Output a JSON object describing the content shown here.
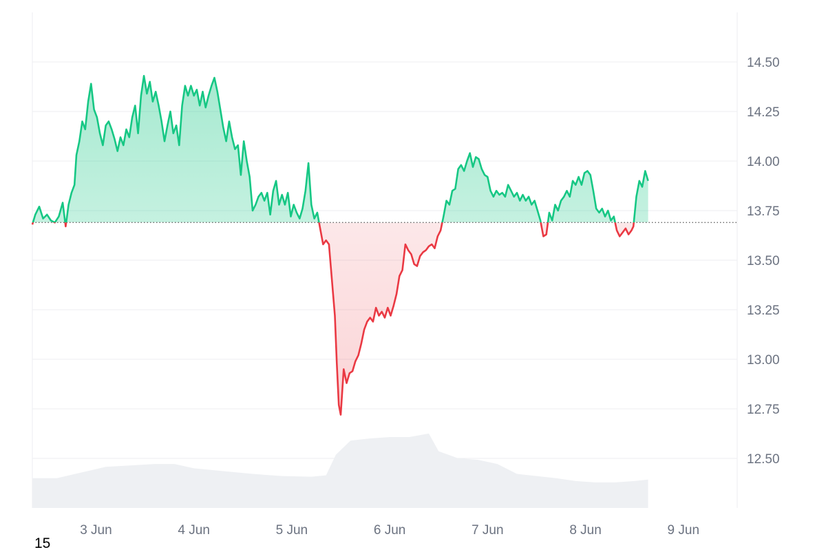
{
  "chart_data": {
    "type": "area",
    "baseline": 13.69,
    "ylim": [
      12.25,
      14.75
    ],
    "y_ticks": [
      12.5,
      12.75,
      13.0,
      13.25,
      13.5,
      13.75,
      14.0,
      14.25,
      14.5
    ],
    "y_tick_labels": [
      "12.50",
      "12.75",
      "13.00",
      "13.25",
      "13.50",
      "13.75",
      "14.00",
      "14.25",
      "14.50"
    ],
    "x_range_days": [
      2.35,
      9.55
    ],
    "x_ticks": [
      {
        "day": 3,
        "label": "3 Jun"
      },
      {
        "day": 4,
        "label": "4 Jun"
      },
      {
        "day": 5,
        "label": "5 Jun"
      },
      {
        "day": 6,
        "label": "6 Jun"
      },
      {
        "day": 7,
        "label": "7 Jun"
      },
      {
        "day": 8,
        "label": "8 Jun"
      },
      {
        "day": 9,
        "label": "9 Jun"
      }
    ],
    "series": [
      {
        "color_up": "#16c784",
        "color_down": "#ea3943",
        "points": [
          [
            2.35,
            13.68
          ],
          [
            2.38,
            13.73
          ],
          [
            2.42,
            13.77
          ],
          [
            2.46,
            13.71
          ],
          [
            2.5,
            13.73
          ],
          [
            2.54,
            13.7
          ],
          [
            2.58,
            13.69
          ],
          [
            2.62,
            13.72
          ],
          [
            2.66,
            13.79
          ],
          [
            2.69,
            13.67
          ],
          [
            2.72,
            13.78
          ],
          [
            2.75,
            13.84
          ],
          [
            2.78,
            13.88
          ],
          [
            2.8,
            14.03
          ],
          [
            2.83,
            14.1
          ],
          [
            2.86,
            14.2
          ],
          [
            2.89,
            14.16
          ],
          [
            2.92,
            14.3
          ],
          [
            2.95,
            14.39
          ],
          [
            2.98,
            14.26
          ],
          [
            3.01,
            14.22
          ],
          [
            3.04,
            14.14
          ],
          [
            3.07,
            14.08
          ],
          [
            3.1,
            14.18
          ],
          [
            3.13,
            14.2
          ],
          [
            3.16,
            14.16
          ],
          [
            3.19,
            14.11
          ],
          [
            3.22,
            14.05
          ],
          [
            3.25,
            14.12
          ],
          [
            3.28,
            14.08
          ],
          [
            3.31,
            14.16
          ],
          [
            3.34,
            14.12
          ],
          [
            3.37,
            14.22
          ],
          [
            3.4,
            14.28
          ],
          [
            3.43,
            14.14
          ],
          [
            3.46,
            14.33
          ],
          [
            3.49,
            14.43
          ],
          [
            3.52,
            14.34
          ],
          [
            3.55,
            14.4
          ],
          [
            3.58,
            14.3
          ],
          [
            3.61,
            14.35
          ],
          [
            3.64,
            14.28
          ],
          [
            3.67,
            14.2
          ],
          [
            3.7,
            14.1
          ],
          [
            3.73,
            14.18
          ],
          [
            3.76,
            14.25
          ],
          [
            3.79,
            14.14
          ],
          [
            3.82,
            14.18
          ],
          [
            3.85,
            14.08
          ],
          [
            3.88,
            14.28
          ],
          [
            3.91,
            14.38
          ],
          [
            3.94,
            14.33
          ],
          [
            3.97,
            14.38
          ],
          [
            4.0,
            14.33
          ],
          [
            4.03,
            14.36
          ],
          [
            4.06,
            14.28
          ],
          [
            4.09,
            14.35
          ],
          [
            4.12,
            14.27
          ],
          [
            4.15,
            14.33
          ],
          [
            4.18,
            14.38
          ],
          [
            4.21,
            14.42
          ],
          [
            4.24,
            14.35
          ],
          [
            4.27,
            14.26
          ],
          [
            4.3,
            14.17
          ],
          [
            4.33,
            14.1
          ],
          [
            4.36,
            14.2
          ],
          [
            4.39,
            14.12
          ],
          [
            4.42,
            14.06
          ],
          [
            4.45,
            14.08
          ],
          [
            4.48,
            13.93
          ],
          [
            4.51,
            14.1
          ],
          [
            4.54,
            14.0
          ],
          [
            4.57,
            13.92
          ],
          [
            4.6,
            13.75
          ],
          [
            4.63,
            13.78
          ],
          [
            4.66,
            13.82
          ],
          [
            4.69,
            13.84
          ],
          [
            4.72,
            13.8
          ],
          [
            4.75,
            13.84
          ],
          [
            4.78,
            13.73
          ],
          [
            4.81,
            13.85
          ],
          [
            4.84,
            13.9
          ],
          [
            4.87,
            13.78
          ],
          [
            4.9,
            13.83
          ],
          [
            4.93,
            13.78
          ],
          [
            4.96,
            13.84
          ],
          [
            4.99,
            13.72
          ],
          [
            5.02,
            13.78
          ],
          [
            5.05,
            13.74
          ],
          [
            5.08,
            13.71
          ],
          [
            5.11,
            13.76
          ],
          [
            5.14,
            13.85
          ],
          [
            5.17,
            13.99
          ],
          [
            5.2,
            13.78
          ],
          [
            5.23,
            13.71
          ],
          [
            5.26,
            13.74
          ],
          [
            5.29,
            13.66
          ],
          [
            5.32,
            13.58
          ],
          [
            5.35,
            13.6
          ],
          [
            5.38,
            13.58
          ],
          [
            5.41,
            13.4
          ],
          [
            5.44,
            13.22
          ],
          [
            5.46,
            12.98
          ],
          [
            5.48,
            12.77
          ],
          [
            5.5,
            12.72
          ],
          [
            5.53,
            12.95
          ],
          [
            5.56,
            12.88
          ],
          [
            5.59,
            12.93
          ],
          [
            5.62,
            12.94
          ],
          [
            5.65,
            12.99
          ],
          [
            5.68,
            13.02
          ],
          [
            5.71,
            13.08
          ],
          [
            5.74,
            13.15
          ],
          [
            5.77,
            13.19
          ],
          [
            5.8,
            13.21
          ],
          [
            5.83,
            13.19
          ],
          [
            5.86,
            13.26
          ],
          [
            5.89,
            13.22
          ],
          [
            5.92,
            13.24
          ],
          [
            5.95,
            13.21
          ],
          [
            5.98,
            13.26
          ],
          [
            6.01,
            13.22
          ],
          [
            6.04,
            13.27
          ],
          [
            6.07,
            13.33
          ],
          [
            6.1,
            13.42
          ],
          [
            6.13,
            13.45
          ],
          [
            6.16,
            13.58
          ],
          [
            6.19,
            13.55
          ],
          [
            6.22,
            13.53
          ],
          [
            6.25,
            13.48
          ],
          [
            6.28,
            13.47
          ],
          [
            6.31,
            13.52
          ],
          [
            6.34,
            13.54
          ],
          [
            6.37,
            13.55
          ],
          [
            6.4,
            13.57
          ],
          [
            6.43,
            13.58
          ],
          [
            6.46,
            13.56
          ],
          [
            6.49,
            13.62
          ],
          [
            6.52,
            13.65
          ],
          [
            6.55,
            13.72
          ],
          [
            6.58,
            13.8
          ],
          [
            6.61,
            13.78
          ],
          [
            6.64,
            13.85
          ],
          [
            6.67,
            13.86
          ],
          [
            6.7,
            13.96
          ],
          [
            6.73,
            13.98
          ],
          [
            6.76,
            13.95
          ],
          [
            6.79,
            14.0
          ],
          [
            6.82,
            14.04
          ],
          [
            6.85,
            13.97
          ],
          [
            6.88,
            14.02
          ],
          [
            6.91,
            14.01
          ],
          [
            6.94,
            13.96
          ],
          [
            6.97,
            13.93
          ],
          [
            7.0,
            13.92
          ],
          [
            7.03,
            13.85
          ],
          [
            7.06,
            13.82
          ],
          [
            7.09,
            13.85
          ],
          [
            7.12,
            13.83
          ],
          [
            7.15,
            13.84
          ],
          [
            7.18,
            13.82
          ],
          [
            7.21,
            13.88
          ],
          [
            7.24,
            13.85
          ],
          [
            7.27,
            13.82
          ],
          [
            7.3,
            13.84
          ],
          [
            7.33,
            13.8
          ],
          [
            7.36,
            13.83
          ],
          [
            7.39,
            13.8
          ],
          [
            7.42,
            13.82
          ],
          [
            7.45,
            13.78
          ],
          [
            7.48,
            13.8
          ],
          [
            7.51,
            13.75
          ],
          [
            7.54,
            13.7
          ],
          [
            7.57,
            13.62
          ],
          [
            7.6,
            13.63
          ],
          [
            7.63,
            13.74
          ],
          [
            7.66,
            13.7
          ],
          [
            7.69,
            13.78
          ],
          [
            7.72,
            13.75
          ],
          [
            7.75,
            13.8
          ],
          [
            7.78,
            13.82
          ],
          [
            7.81,
            13.85
          ],
          [
            7.84,
            13.82
          ],
          [
            7.87,
            13.9
          ],
          [
            7.9,
            13.88
          ],
          [
            7.93,
            13.92
          ],
          [
            7.96,
            13.88
          ],
          [
            7.99,
            13.94
          ],
          [
            8.02,
            13.95
          ],
          [
            8.05,
            13.93
          ],
          [
            8.08,
            13.85
          ],
          [
            8.11,
            13.76
          ],
          [
            8.14,
            13.74
          ],
          [
            8.17,
            13.76
          ],
          [
            8.2,
            13.72
          ],
          [
            8.23,
            13.75
          ],
          [
            8.26,
            13.7
          ],
          [
            8.29,
            13.72
          ],
          [
            8.32,
            13.65
          ],
          [
            8.35,
            13.62
          ],
          [
            8.38,
            13.64
          ],
          [
            8.41,
            13.66
          ],
          [
            8.44,
            13.63
          ],
          [
            8.47,
            13.65
          ],
          [
            8.49,
            13.67
          ],
          [
            8.52,
            13.82
          ],
          [
            8.55,
            13.9
          ],
          [
            8.58,
            13.87
          ],
          [
            8.61,
            13.95
          ],
          [
            8.64,
            13.9
          ]
        ]
      }
    ],
    "volume": [
      [
        2.35,
        0.42
      ],
      [
        2.6,
        0.42
      ],
      [
        2.85,
        0.5
      ],
      [
        3.1,
        0.58
      ],
      [
        3.35,
        0.6
      ],
      [
        3.6,
        0.62
      ],
      [
        3.8,
        0.62
      ],
      [
        4.0,
        0.56
      ],
      [
        4.3,
        0.52
      ],
      [
        4.6,
        0.48
      ],
      [
        4.9,
        0.45
      ],
      [
        5.2,
        0.44
      ],
      [
        5.35,
        0.46
      ],
      [
        5.45,
        0.75
      ],
      [
        5.6,
        0.95
      ],
      [
        5.8,
        0.98
      ],
      [
        6.0,
        1.0
      ],
      [
        6.2,
        1.0
      ],
      [
        6.4,
        1.05
      ],
      [
        6.5,
        0.8
      ],
      [
        6.7,
        0.7
      ],
      [
        6.9,
        0.68
      ],
      [
        7.1,
        0.62
      ],
      [
        7.3,
        0.48
      ],
      [
        7.5,
        0.45
      ],
      [
        7.7,
        0.42
      ],
      [
        7.9,
        0.38
      ],
      [
        8.1,
        0.36
      ],
      [
        8.3,
        0.36
      ],
      [
        8.5,
        0.38
      ],
      [
        8.64,
        0.4
      ]
    ]
  },
  "footer_text": "15"
}
